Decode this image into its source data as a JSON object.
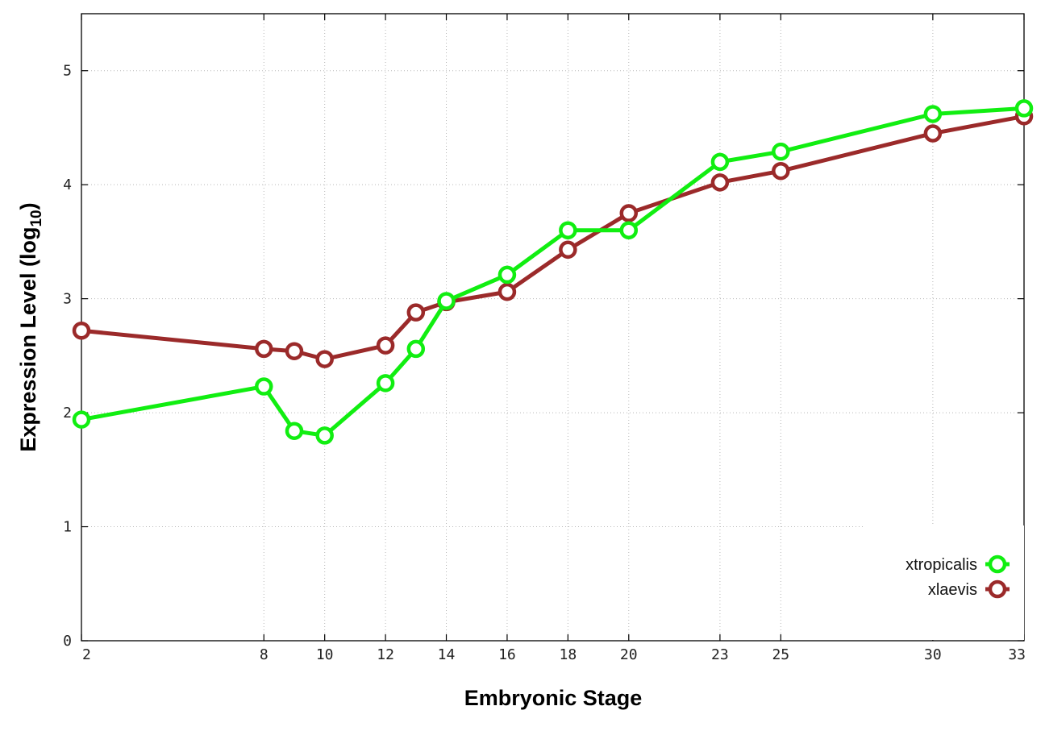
{
  "chart_data": {
    "type": "line",
    "xlabel": "Embryonic Stage",
    "ylabel_main": "Expression Level (log",
    "ylabel_sub": "10",
    "ylabel_close": ")",
    "xlim": [
      2,
      33
    ],
    "ylim": [
      0,
      5.5
    ],
    "x_ticks": [
      2,
      8,
      10,
      12,
      14,
      16,
      18,
      20,
      23,
      25,
      30,
      33
    ],
    "y_ticks": [
      0,
      1,
      2,
      3,
      4,
      5
    ],
    "grid": true,
    "legend_position": "bottom-right",
    "series": [
      {
        "name": "xtropicalis",
        "color": "#11ee11",
        "x": [
          2,
          8,
          9,
          10,
          12,
          13,
          14,
          16,
          18,
          20,
          23,
          25,
          30,
          33
        ],
        "y": [
          1.94,
          2.23,
          1.84,
          1.8,
          2.26,
          2.56,
          2.98,
          3.21,
          3.6,
          3.6,
          4.2,
          4.29,
          4.62,
          4.67
        ]
      },
      {
        "name": "xlaevis",
        "color": "#9b2a2a",
        "x": [
          2,
          8,
          9,
          10,
          12,
          13,
          14,
          16,
          18,
          20,
          23,
          25,
          30,
          33
        ],
        "y": [
          2.72,
          2.56,
          2.54,
          2.47,
          2.59,
          2.88,
          2.97,
          3.06,
          3.43,
          3.75,
          4.02,
          4.12,
          4.45,
          4.6
        ]
      }
    ]
  }
}
